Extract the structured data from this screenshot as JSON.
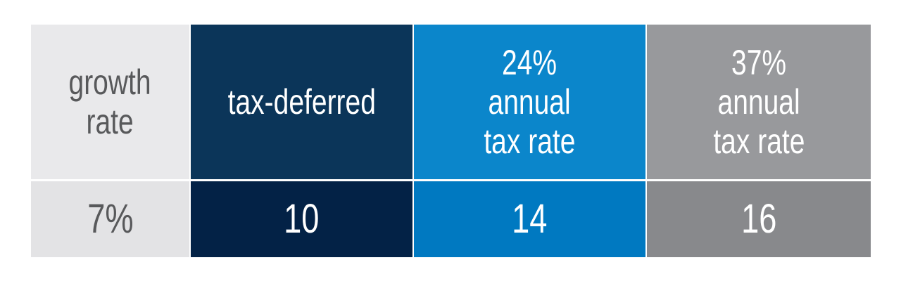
{
  "table": {
    "columns": [
      {
        "key": "growth_rate",
        "header_lines": [
          "growth",
          "rate"
        ],
        "value": "7%",
        "colors": {
          "header_bg": "#e9e9eb",
          "value_bg": "#e3e3e5",
          "text": "#58595b"
        }
      },
      {
        "key": "tax_deferred",
        "header_lines": [
          "tax-deferred"
        ],
        "value": "10",
        "colors": {
          "header_bg": "#0b3559",
          "value_bg": "#032246",
          "text": "#ffffff"
        }
      },
      {
        "key": "annual_tax_24",
        "header_lines": [
          "24%",
          "annual",
          "tax rate"
        ],
        "value": "14",
        "colors": {
          "header_bg": "#0b86cb",
          "value_bg": "#0079c1",
          "text": "#ffffff"
        }
      },
      {
        "key": "annual_tax_37",
        "header_lines": [
          "37%",
          "annual",
          "tax rate"
        ],
        "value": "16",
        "colors": {
          "header_bg": "#98999c",
          "value_bg": "#88898c",
          "text": "#ffffff"
        }
      }
    ]
  }
}
